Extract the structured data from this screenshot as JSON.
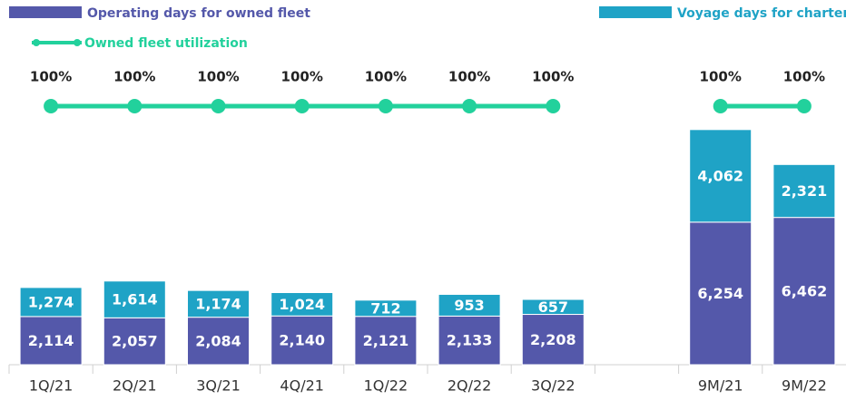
{
  "chart_data": {
    "type": "bar",
    "stacked": true,
    "categories": [
      "1Q/21",
      "2Q/21",
      "3Q/21",
      "4Q/21",
      "1Q/22",
      "2Q/22",
      "3Q/22",
      null,
      "9M/21",
      "9M/22"
    ],
    "series": [
      {
        "name": "Operating days for owned fleet",
        "color": "#5458aa",
        "values": [
          2114,
          2057,
          2084,
          2140,
          2121,
          2133,
          2208,
          null,
          6254,
          6462
        ],
        "value_labels": [
          "2,114",
          "2,057",
          "2,084",
          "2,140",
          "2,121",
          "2,133",
          "2,208",
          null,
          "6,254",
          "6,462"
        ]
      },
      {
        "name": "Voyage days for chartered-in fleet",
        "color": "#1fa3c6",
        "values": [
          1274,
          1614,
          1174,
          1024,
          712,
          953,
          657,
          null,
          4062,
          2321
        ],
        "value_labels": [
          "1,274",
          "1,614",
          "1,174",
          "1,024",
          "712",
          "953",
          "657",
          null,
          "4,062",
          "2,321"
        ]
      },
      {
        "name": "Owned fleet utilization",
        "type": "line",
        "axis": "y2",
        "color": "#22d19c",
        "values": [
          100,
          100,
          100,
          100,
          100,
          100,
          100,
          null,
          100,
          100
        ],
        "value_labels": [
          "100%",
          "100%",
          "100%",
          "100%",
          "100%",
          "100%",
          "100%",
          null,
          "100%",
          "100%"
        ]
      }
    ],
    "ylim": [
      0,
      16000
    ],
    "y2lim": [
      0,
      100
    ],
    "legend": "top"
  }
}
